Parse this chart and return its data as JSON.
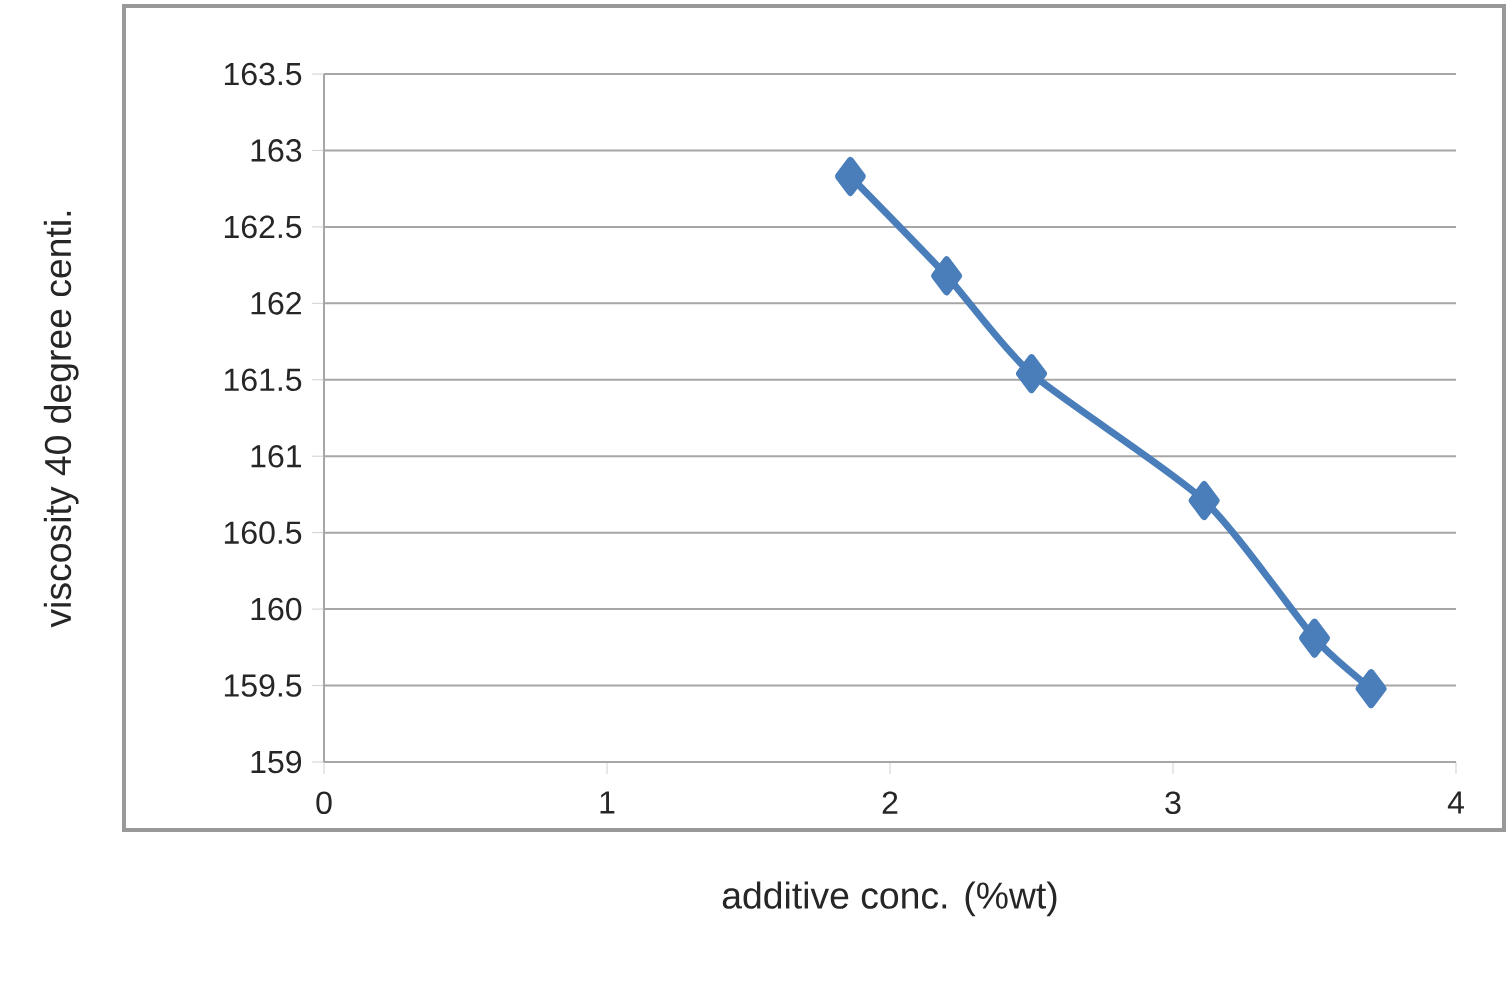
{
  "chart_data": {
    "type": "line",
    "xlabel": "additive conc. (%wt)",
    "ylabel": "viscosity 40 degree centi.",
    "series": [
      {
        "color": "#4a7ebb",
        "x": [
          1.86,
          2.2,
          2.5,
          3.11,
          3.5,
          3.7
        ],
        "values": [
          162.83,
          162.18,
          161.54,
          160.71,
          159.81,
          159.48
        ]
      }
    ],
    "xlim": [
      0,
      4
    ],
    "xticks": [
      0,
      1,
      2,
      3,
      4
    ],
    "ylim": [
      159,
      163.5
    ],
    "yticks": [
      159,
      159.5,
      160,
      160.5,
      161,
      161.5,
      162,
      162.5,
      163,
      163.5
    ],
    "grid": "y",
    "marker": "diamond",
    "line_style": "solid"
  }
}
